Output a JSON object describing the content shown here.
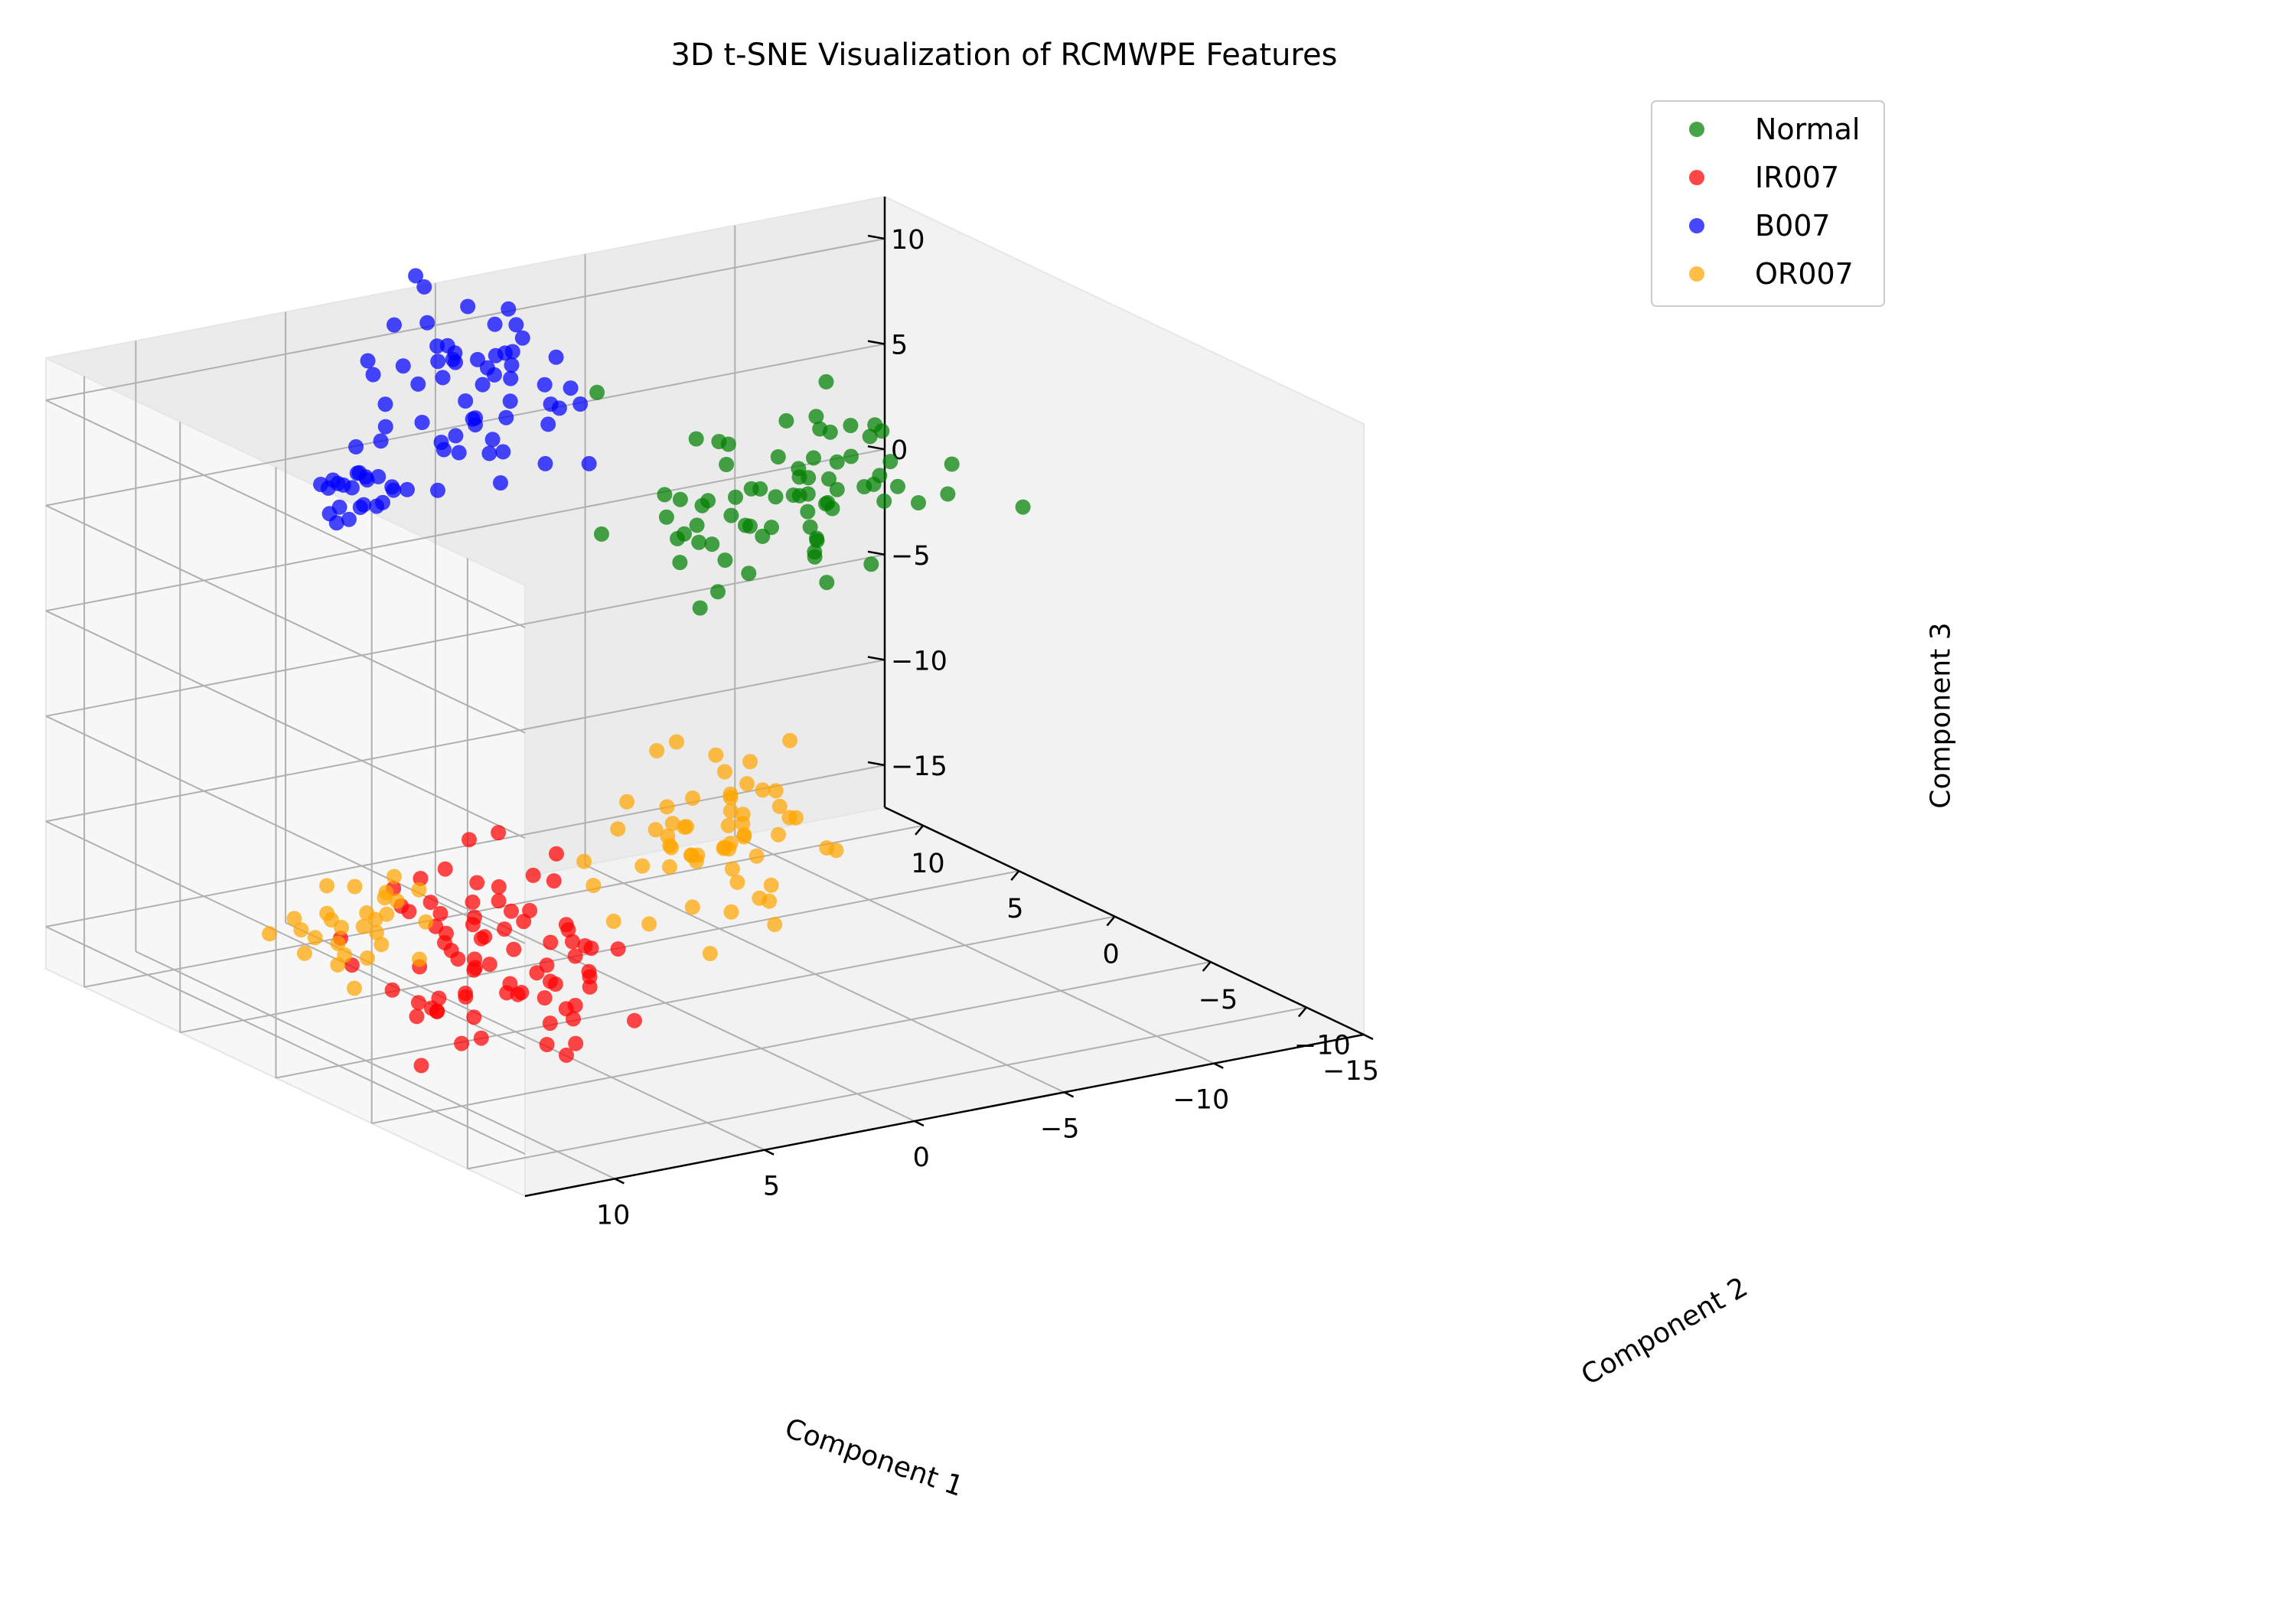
{
  "chart_data": {
    "type": "scatter",
    "title": "3D t-SNE Visualization of RCMWPE Features",
    "xlabel": "Component 1",
    "ylabel": "Component 2",
    "zlabel": "Component 3",
    "xlim": [
      -15,
      13
    ],
    "ylim": [
      -13,
      12
    ],
    "zlim": [
      -17,
      12
    ],
    "xticks": [
      -15,
      -10,
      -5,
      0,
      5,
      10
    ],
    "yticks": [
      -10,
      -5,
      0,
      5,
      10
    ],
    "zticks": [
      -15,
      -10,
      -5,
      0,
      5,
      10
    ],
    "xtick_labels": [
      "−15",
      "−10",
      "−5",
      "0",
      "5",
      "10"
    ],
    "ytick_labels": [
      "−10",
      "−5",
      "0",
      "5",
      "10"
    ],
    "ztick_labels": [
      "−15",
      "−10",
      "−5",
      "0",
      "5",
      "10"
    ],
    "grid": true,
    "legend_position": "top-right",
    "series": [
      {
        "name": "Normal",
        "color": "#008000",
        "clusters": [
          {
            "cx": -8.1,
            "cy": 5.9,
            "cz": 2.5,
            "sx": 2.8,
            "sy": 1.6,
            "sz": 2.0,
            "n": 72
          }
        ]
      },
      {
        "name": "IR007",
        "color": "#ff0000",
        "clusters": [
          {
            "cx": 7.5,
            "cy": -3.2,
            "cz": -11.5,
            "sx": 1.7,
            "sy": 2.0,
            "sz": 2.4,
            "n": 78
          }
        ]
      },
      {
        "name": "B007",
        "color": "#0000ff",
        "clusters": [
          {
            "cx": 0.5,
            "cy": 8.5,
            "cz": 8.8,
            "sx": 1.7,
            "sy": 1.8,
            "sz": 2.3,
            "n": 58
          },
          {
            "cx": 3.6,
            "cy": 10.4,
            "cz": 3.5,
            "sx": 0.8,
            "sy": 0.5,
            "sz": 0.9,
            "n": 22
          }
        ]
      },
      {
        "name": "OR007",
        "color": "#ffa500",
        "clusters": [
          {
            "cx": -3.8,
            "cy": 3.0,
            "cz": -11.5,
            "sx": 1.7,
            "sy": 1.6,
            "sz": 2.2,
            "n": 58
          },
          {
            "cx": 6.4,
            "cy": 6.3,
            "cz": -14.3,
            "sx": 1.2,
            "sy": 0.7,
            "sz": 1.0,
            "n": 28
          }
        ]
      }
    ]
  }
}
